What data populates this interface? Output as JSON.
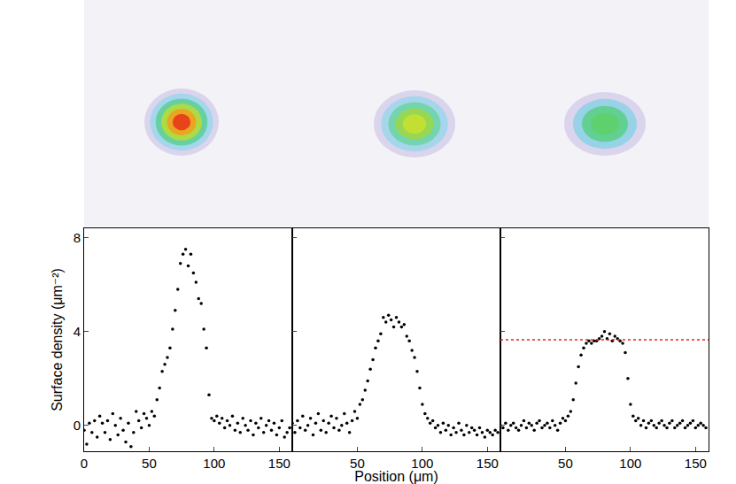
{
  "chart_data": [
    {
      "type": "scatter",
      "marker": "circle",
      "color": "#000000",
      "grid": false,
      "y_label": "Surface density (μm⁻²)",
      "xlim": [
        0,
        160
      ],
      "xticks": [
        0,
        50,
        100,
        150
      ],
      "ylim": [
        -1.1,
        8.4
      ],
      "yticks": [
        0,
        4,
        8
      ],
      "x": [
        0,
        2,
        4,
        6,
        8,
        10,
        12,
        14,
        16,
        18,
        20,
        22,
        24,
        26,
        28,
        30,
        32,
        34,
        36,
        38,
        40,
        42,
        44,
        46,
        48,
        50,
        52,
        54,
        56,
        58,
        60,
        62,
        64,
        66,
        68,
        70,
        72,
        74,
        76,
        78,
        80,
        82,
        84,
        86,
        88,
        90,
        92,
        94,
        96,
        98,
        100,
        102,
        104,
        106,
        108,
        110,
        112,
        114,
        116,
        118,
        120,
        122,
        124,
        126,
        128,
        130,
        132,
        134,
        136,
        138,
        140,
        142,
        144,
        146,
        148,
        150,
        152,
        154,
        156,
        158
      ],
      "values": [
        -0.2,
        -0.8,
        0.1,
        -0.3,
        0.2,
        -0.5,
        0.4,
        0.1,
        -0.3,
        0.2,
        -0.6,
        0.5,
        0.0,
        -0.4,
        0.3,
        -0.2,
        -0.7,
        0.1,
        -0.9,
        -0.3,
        0.6,
        0.2,
        -0.1,
        0.5,
        0.3,
        0.0,
        0.6,
        0.4,
        1.1,
        1.6,
        2.3,
        2.6,
        2.9,
        3.3,
        4.1,
        4.9,
        5.8,
        6.9,
        7.3,
        7.5,
        6.8,
        7.3,
        6.5,
        6.1,
        5.4,
        5.2,
        4.1,
        3.3,
        1.3,
        0.3,
        0.2,
        0.4,
        0.1,
        0.3,
        -0.1,
        0.2,
        0.0,
        0.4,
        -0.2,
        0.1,
        -0.3,
        0.3,
        0.0,
        -0.2,
        0.2,
        -0.4,
        0.1,
        -0.1,
        0.3,
        -0.3,
        0.0,
        0.2,
        -0.2,
        0.1,
        -0.4,
        -0.1,
        0.2,
        -0.5,
        -0.3,
        -0.1
      ]
    },
    {
      "type": "scatter",
      "marker": "circle",
      "color": "#000000",
      "grid": false,
      "tick_labels": "x",
      "x_label": "Position (μm)",
      "xlim": [
        0,
        160
      ],
      "xticks": [
        50,
        100,
        150
      ],
      "ylim": [
        -1.1,
        8.4
      ],
      "yticks": [
        0,
        4,
        8
      ],
      "x": [
        0,
        2,
        4,
        6,
        8,
        10,
        12,
        14,
        16,
        18,
        20,
        22,
        24,
        26,
        28,
        30,
        32,
        34,
        36,
        38,
        40,
        42,
        44,
        46,
        48,
        50,
        52,
        54,
        56,
        58,
        60,
        62,
        64,
        66,
        68,
        70,
        72,
        74,
        76,
        78,
        80,
        82,
        84,
        86,
        88,
        90,
        92,
        94,
        96,
        98,
        100,
        102,
        104,
        106,
        108,
        110,
        112,
        114,
        116,
        118,
        120,
        122,
        124,
        126,
        128,
        130,
        132,
        134,
        136,
        138,
        140,
        142,
        144,
        146,
        148,
        150,
        152,
        154,
        156,
        158
      ],
      "values": [
        0.1,
        -0.3,
        0.2,
        -0.1,
        0.4,
        -0.2,
        0.0,
        0.3,
        -0.4,
        0.1,
        0.5,
        -0.2,
        0.2,
        -0.3,
        0.1,
        0.4,
        -0.1,
        0.3,
        -0.2,
        0.0,
        0.5,
        0.1,
        -0.3,
        0.2,
        0.6,
        0.3,
        0.9,
        1.1,
        1.5,
        1.9,
        2.4,
        2.8,
        3.3,
        3.6,
        3.9,
        4.6,
        4.4,
        4.7,
        4.5,
        4.2,
        4.6,
        4.4,
        4.2,
        4.3,
        3.8,
        3.6,
        3.2,
        2.9,
        2.3,
        1.6,
        0.9,
        0.5,
        0.3,
        0.1,
        0.2,
        -0.1,
        0.0,
        -0.3,
        0.1,
        -0.2,
        0.0,
        -0.4,
        -0.1,
        -0.3,
        0.1,
        -0.2,
        -0.4,
        0.0,
        -0.3,
        -0.1,
        -0.2,
        -0.4,
        -0.1,
        -0.3,
        -0.5,
        -0.2,
        -0.3,
        -0.4,
        -0.2,
        -0.3
      ]
    },
    {
      "type": "scatter",
      "marker": "circle",
      "color": "#000000",
      "grid": false,
      "tick_labels": "x",
      "xlim": [
        0,
        160
      ],
      "xticks": [
        50,
        100,
        150
      ],
      "ylim": [
        -1.1,
        8.4
      ],
      "yticks": [
        0,
        4,
        8
      ],
      "reference_line": {
        "value": 3.65,
        "color": "#e8231c",
        "line_style": "dot"
      },
      "x": [
        0,
        2,
        4,
        6,
        8,
        10,
        12,
        14,
        16,
        18,
        20,
        22,
        24,
        26,
        28,
        30,
        32,
        34,
        36,
        38,
        40,
        42,
        44,
        46,
        48,
        50,
        52,
        54,
        56,
        58,
        60,
        62,
        64,
        66,
        68,
        70,
        72,
        74,
        76,
        78,
        80,
        82,
        84,
        86,
        88,
        90,
        92,
        94,
        96,
        98,
        100,
        102,
        104,
        106,
        108,
        110,
        112,
        114,
        116,
        118,
        120,
        122,
        124,
        126,
        128,
        130,
        132,
        134,
        136,
        138,
        140,
        142,
        144,
        146,
        148,
        150,
        152,
        154,
        156,
        158
      ],
      "values": [
        0.0,
        -0.1,
        0.1,
        -0.2,
        0.0,
        0.1,
        -0.1,
        -0.2,
        0.0,
        0.2,
        -0.1,
        0.1,
        0.0,
        -0.2,
        0.1,
        0.2,
        -0.1,
        0.0,
        0.1,
        -0.1,
        0.2,
        0.0,
        -0.2,
        0.1,
        0.3,
        0.2,
        0.4,
        0.6,
        1.1,
        1.8,
        2.5,
        3.0,
        3.3,
        3.5,
        3.6,
        3.5,
        3.6,
        3.6,
        3.7,
        3.8,
        4.0,
        3.7,
        3.9,
        3.6,
        3.8,
        3.7,
        3.6,
        3.5,
        3.1,
        2.0,
        0.9,
        0.4,
        0.2,
        0.3,
        0.0,
        0.2,
        -0.1,
        0.1,
        0.2,
        0.0,
        -0.1,
        0.1,
        0.2,
        0.0,
        -0.1,
        0.1,
        0.2,
        -0.1,
        0.0,
        0.1,
        0.2,
        -0.1,
        0.0,
        0.1,
        0.2,
        -0.1,
        0.0,
        0.1,
        0.0,
        -0.1
      ]
    }
  ]
}
